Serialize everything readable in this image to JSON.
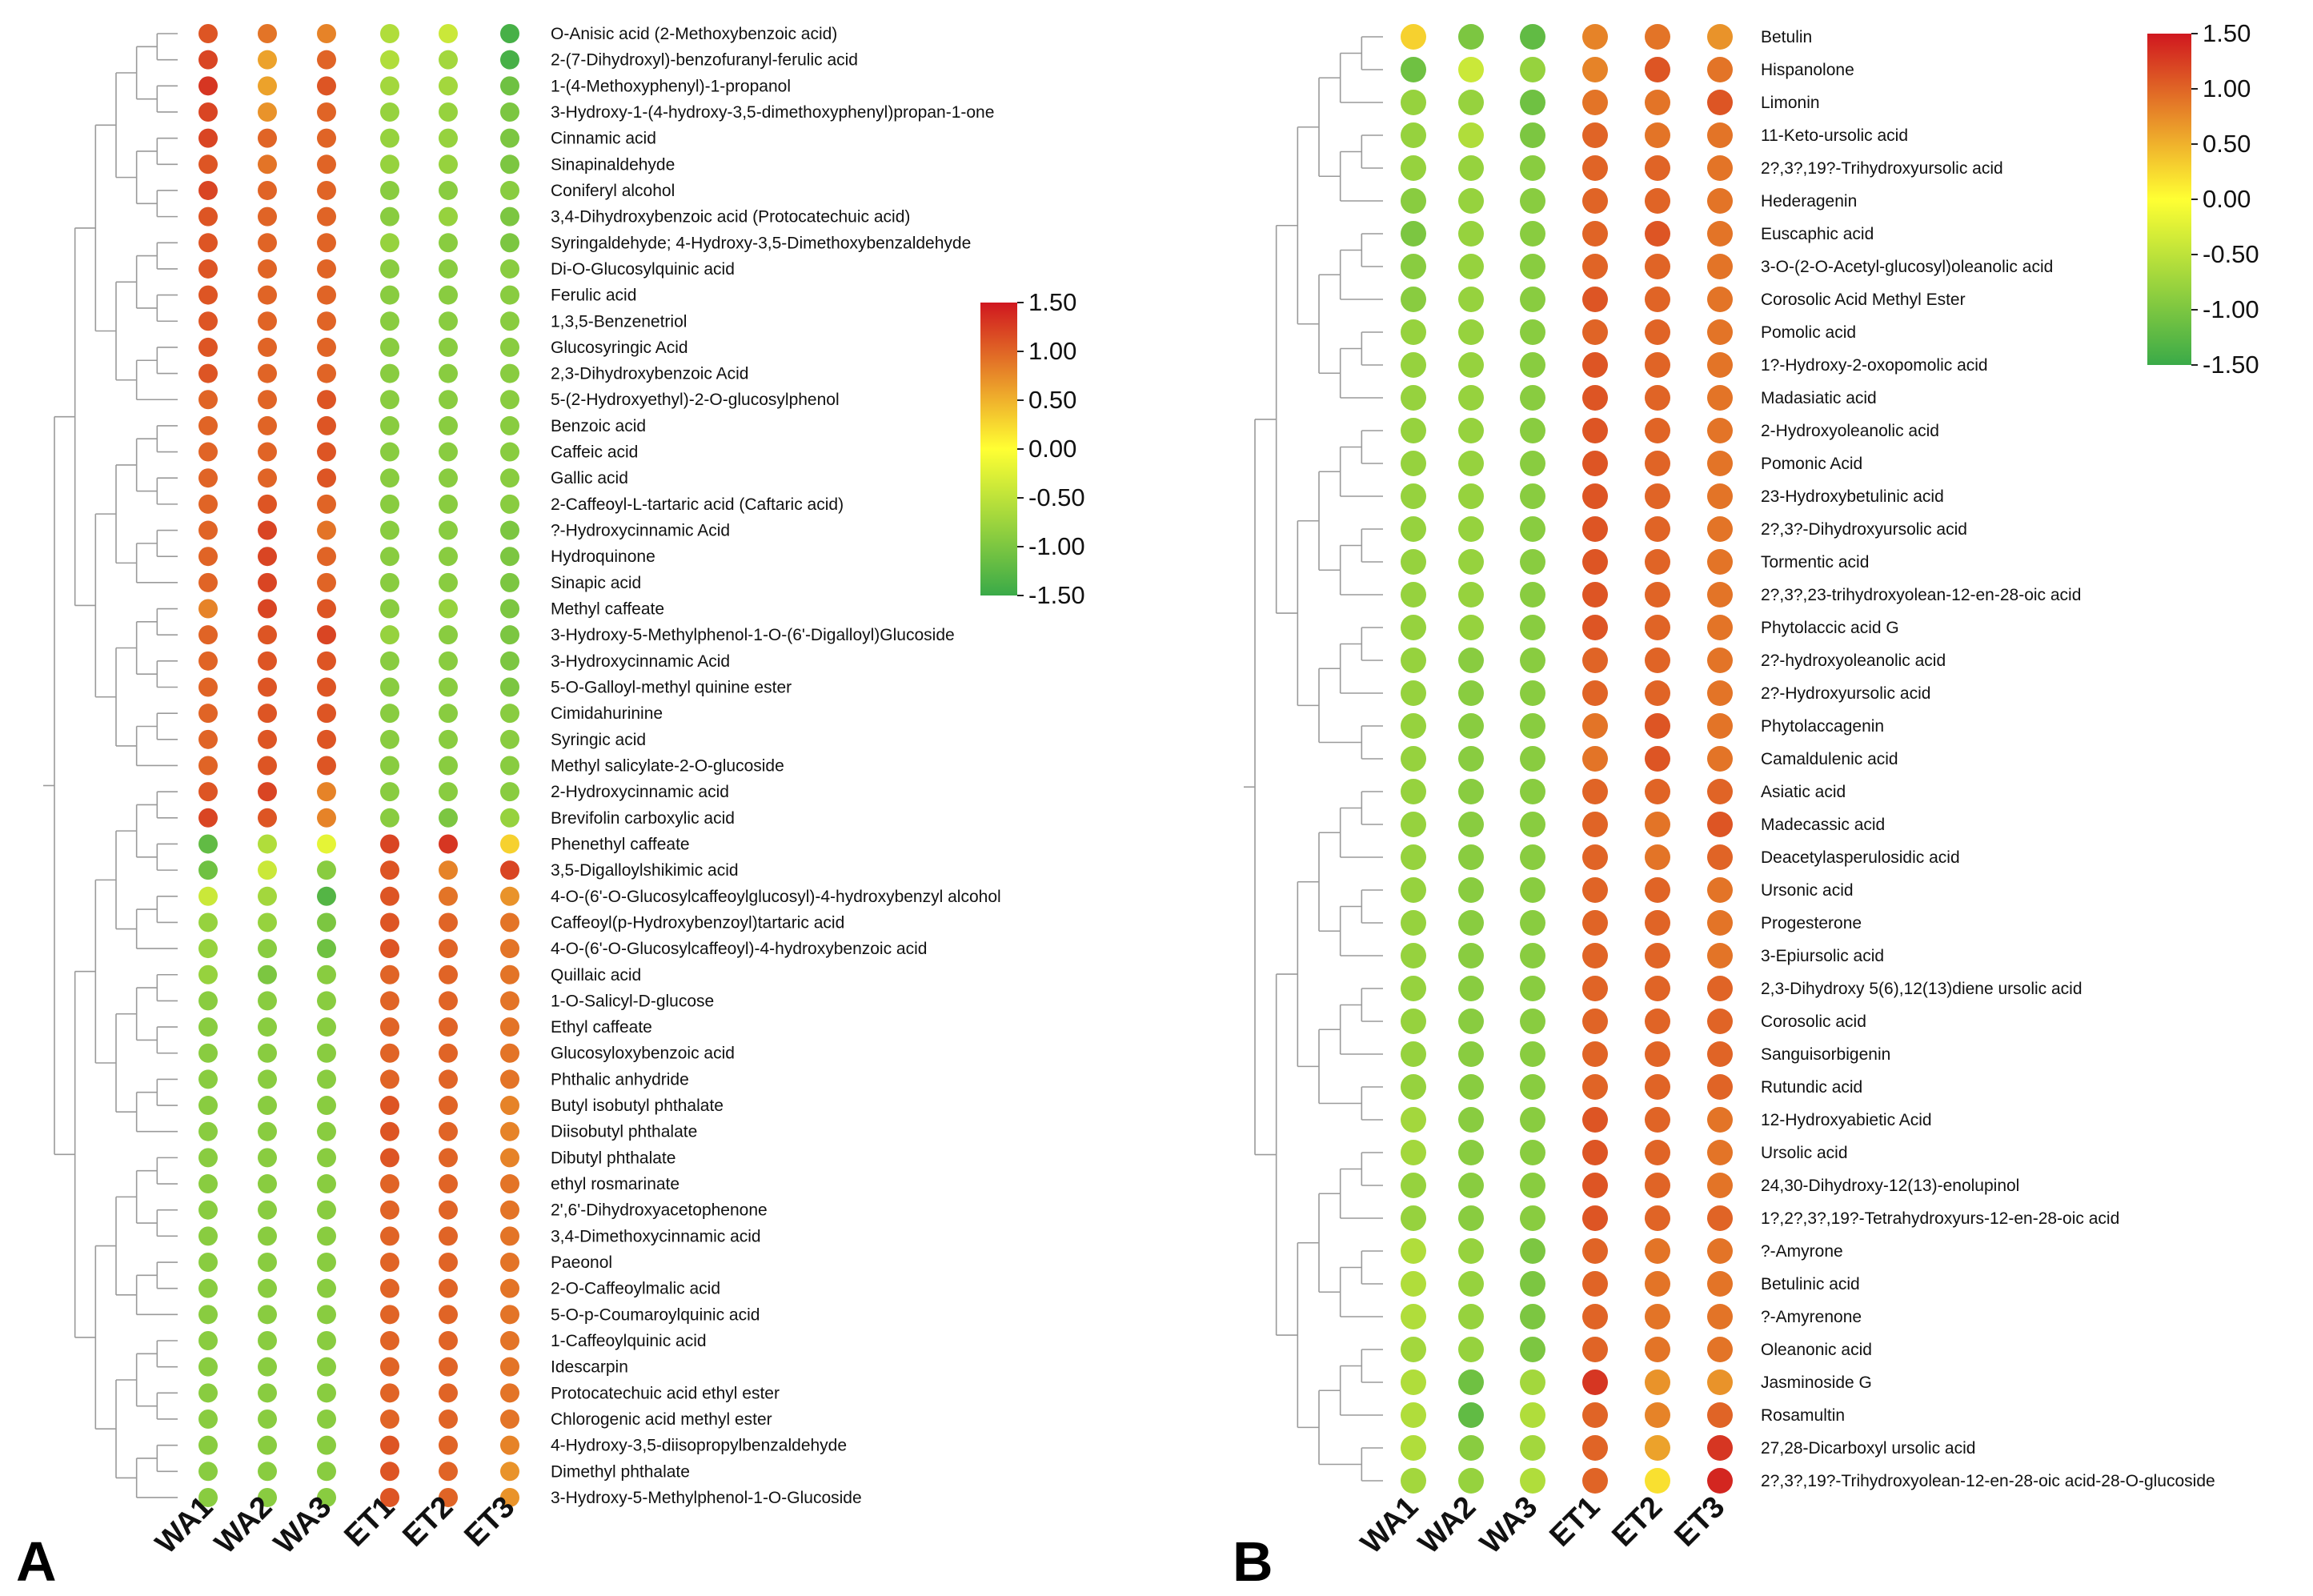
{
  "chart_data": [
    {
      "type": "heatmap",
      "panel_label": "A",
      "legend_position": "right",
      "columns": [
        "WA1",
        "WA2",
        "WA3",
        "ET1",
        "ET2",
        "ET3"
      ],
      "color_scale": {
        "min": -1.5,
        "max": 1.5,
        "colors": [
          "#3aaa48",
          "#ffff33",
          "#d0171f"
        ],
        "ticks": [
          "1.50",
          "1.00",
          "0.50",
          "0.00",
          "-0.50",
          "-1.00",
          "-1.50"
        ]
      },
      "rows": [
        "O-Anisic acid (2-Methoxybenzoic acid)",
        "2-(7-Dihydroxyl)-benzofuranyl-ferulic acid",
        "1-(4-Methoxyphenyl)-1-propanol",
        "3-Hydroxy-1-(4-hydroxy-3,5-dimethoxyphenyl)propan-1-one",
        "Cinnamic acid",
        "Sinapinaldehyde",
        "Coniferyl alcohol",
        "3,4-Dihydroxybenzoic acid (Protocatechuic acid)",
        "Syringaldehyde; 4-Hydroxy-3,5-Dimethoxybenzaldehyde",
        "Di-O-Glucosylquinic acid",
        "Ferulic acid",
        "1,3,5-Benzenetriol",
        "Glucosyringic Acid",
        "2,3-Dihydroxybenzoic Acid",
        "5-(2-Hydroxyethyl)-2-O-glucosylphenol",
        "Benzoic acid",
        "Caffeic acid",
        "Gallic acid",
        "2-Caffeoyl-L-tartaric acid (Caftaric acid)",
        "?-Hydroxycinnamic Acid",
        "Hydroquinone",
        "Sinapic acid",
        "Methyl caffeate",
        "3-Hydroxy-5-Methylphenol-1-O-(6'-Digalloyl)Glucoside",
        "3-Hydroxycinnamic Acid",
        "5-O-Galloyl-methyl quinine ester",
        "Cimidahurinine",
        "Syringic acid",
        "Methyl salicylate-2-O-glucoside",
        "2-Hydroxycinnamic acid",
        "Brevifolin carboxylic acid",
        "Phenethyl caffeate",
        "3,5-Digalloylshikimic acid",
        "4-O-(6'-O-Glucosylcaffeoylglucosyl)-4-hydroxybenzyl alcohol",
        "Caffeoyl(p-Hydroxybenzoyl)tartaric acid",
        "4-O-(6'-O-Glucosylcaffeoyl)-4-hydroxybenzoic acid",
        "Quillaic acid",
        "1-O-Salicyl-D-glucose",
        "Ethyl caffeate",
        "Glucosyloxybenzoic acid",
        "Phthalic anhydride",
        "Butyl isobutyl phthalate",
        "Diisobutyl phthalate",
        "Dibutyl phthalate",
        "ethyl rosmarinate",
        "2',6'-Dihydroxyacetophenone",
        "3,4-Dimethoxycinnamic acid",
        "Paeonol",
        "2-O-Caffeoylmalic acid",
        "5-O-p-Coumaroylquinic acid",
        "1-Caffeoylquinic acid",
        "Idescarpin",
        "Protocatechuic acid ethyl ester",
        "Chlorogenic acid methyl ester",
        "4-Hydroxy-3,5-diisopropylbenzaldehyde",
        "Dimethyl phthalate",
        "3-Hydroxy-5-Methylphenol-1-O-Glucoside"
      ],
      "values": [
        [
          1.1,
          0.9,
          0.8,
          -0.6,
          -0.4,
          -1.4
        ],
        [
          1.2,
          0.6,
          1.0,
          -0.6,
          -0.7,
          -1.4
        ],
        [
          1.3,
          0.6,
          1.1,
          -0.7,
          -0.7,
          -1.1
        ],
        [
          1.2,
          0.7,
          1.0,
          -0.8,
          -0.8,
          -1.0
        ],
        [
          1.2,
          1.0,
          1.0,
          -0.8,
          -0.8,
          -1.0
        ],
        [
          1.1,
          0.9,
          1.0,
          -0.8,
          -0.8,
          -1.0
        ],
        [
          1.2,
          1.0,
          1.0,
          -0.9,
          -0.9,
          -0.9
        ],
        [
          1.1,
          1.0,
          1.0,
          -0.9,
          -0.8,
          -1.0
        ],
        [
          1.1,
          1.0,
          1.0,
          -0.8,
          -0.9,
          -1.0
        ],
        [
          1.1,
          1.0,
          1.0,
          -0.9,
          -0.9,
          -0.9
        ],
        [
          1.1,
          1.0,
          1.0,
          -0.9,
          -0.9,
          -0.9
        ],
        [
          1.1,
          1.0,
          1.0,
          -0.9,
          -0.9,
          -0.9
        ],
        [
          1.1,
          1.0,
          1.0,
          -0.9,
          -0.9,
          -0.9
        ],
        [
          1.1,
          1.0,
          1.0,
          -0.9,
          -0.9,
          -0.9
        ],
        [
          1.0,
          1.0,
          1.1,
          -0.9,
          -0.9,
          -0.9
        ],
        [
          1.0,
          1.0,
          1.1,
          -0.9,
          -0.9,
          -0.9
        ],
        [
          1.0,
          1.0,
          1.1,
          -0.9,
          -0.9,
          -0.9
        ],
        [
          1.0,
          1.0,
          1.1,
          -0.9,
          -0.9,
          -0.9
        ],
        [
          1.0,
          1.1,
          1.0,
          -0.9,
          -0.9,
          -0.9
        ],
        [
          1.0,
          1.2,
          0.9,
          -0.9,
          -0.9,
          -1.0
        ],
        [
          1.0,
          1.2,
          1.0,
          -0.9,
          -0.9,
          -1.0
        ],
        [
          1.0,
          1.2,
          1.0,
          -0.9,
          -0.9,
          -1.0
        ],
        [
          0.8,
          1.2,
          1.1,
          -0.9,
          -0.8,
          -1.0
        ],
        [
          1.0,
          1.1,
          1.2,
          -0.8,
          -0.9,
          -1.0
        ],
        [
          1.0,
          1.1,
          1.1,
          -0.9,
          -0.9,
          -1.0
        ],
        [
          1.0,
          1.1,
          1.1,
          -0.9,
          -0.9,
          -1.0
        ],
        [
          1.0,
          1.1,
          1.1,
          -0.9,
          -0.9,
          -0.9
        ],
        [
          1.0,
          1.1,
          1.1,
          -0.9,
          -0.9,
          -0.9
        ],
        [
          1.0,
          1.1,
          1.1,
          -0.9,
          -0.9,
          -0.9
        ],
        [
          1.1,
          1.2,
          0.8,
          -0.9,
          -0.9,
          -0.9
        ],
        [
          1.2,
          1.1,
          0.8,
          -0.9,
          -1.0,
          -0.8
        ],
        [
          -1.2,
          -0.6,
          -0.2,
          1.2,
          1.3,
          0.3
        ],
        [
          -1.1,
          -0.4,
          -0.9,
          1.1,
          0.8,
          1.2
        ],
        [
          -0.4,
          -0.7,
          -1.3,
          1.1,
          0.9,
          0.7
        ],
        [
          -0.8,
          -0.8,
          -1.0,
          1.1,
          1.0,
          0.9
        ],
        [
          -0.8,
          -0.9,
          -1.1,
          1.1,
          1.0,
          0.9
        ],
        [
          -0.8,
          -1.0,
          -0.9,
          1.0,
          1.0,
          0.9
        ],
        [
          -0.9,
          -0.9,
          -0.9,
          1.0,
          1.0,
          0.9
        ],
        [
          -0.9,
          -0.9,
          -0.9,
          1.0,
          1.0,
          0.9
        ],
        [
          -0.9,
          -0.9,
          -0.9,
          1.0,
          1.0,
          0.9
        ],
        [
          -0.9,
          -0.9,
          -0.9,
          1.0,
          1.0,
          0.9
        ],
        [
          -0.9,
          -0.9,
          -0.9,
          1.1,
          1.0,
          0.8
        ],
        [
          -0.9,
          -0.9,
          -0.9,
          1.1,
          1.0,
          0.8
        ],
        [
          -0.9,
          -0.9,
          -0.9,
          1.1,
          1.0,
          0.8
        ],
        [
          -0.9,
          -0.9,
          -0.9,
          1.0,
          1.0,
          0.9
        ],
        [
          -0.9,
          -0.9,
          -0.9,
          1.0,
          1.0,
          0.9
        ],
        [
          -0.9,
          -0.9,
          -0.9,
          1.0,
          1.0,
          0.9
        ],
        [
          -0.9,
          -0.9,
          -0.9,
          1.0,
          1.0,
          0.9
        ],
        [
          -0.9,
          -0.9,
          -0.9,
          1.0,
          1.0,
          0.9
        ],
        [
          -0.9,
          -0.9,
          -0.9,
          1.0,
          1.0,
          0.9
        ],
        [
          -0.9,
          -0.9,
          -0.9,
          1.0,
          1.0,
          0.9
        ],
        [
          -0.9,
          -0.9,
          -0.9,
          1.0,
          1.0,
          0.9
        ],
        [
          -0.9,
          -0.9,
          -0.9,
          1.0,
          1.0,
          0.9
        ],
        [
          -0.9,
          -0.9,
          -0.9,
          1.0,
          1.0,
          0.9
        ],
        [
          -0.9,
          -0.9,
          -0.9,
          1.1,
          1.0,
          0.8
        ],
        [
          -0.9,
          -0.9,
          -0.9,
          1.1,
          1.0,
          0.7
        ],
        [
          -0.9,
          -0.9,
          -0.9,
          1.1,
          1.0,
          0.7
        ]
      ]
    },
    {
      "type": "heatmap",
      "panel_label": "B",
      "legend_position": "top-right",
      "columns": [
        "WA1",
        "WA2",
        "WA3",
        "ET1",
        "ET2",
        "ET3"
      ],
      "color_scale": {
        "min": -1.5,
        "max": 1.5,
        "colors": [
          "#3aaa48",
          "#ffff33",
          "#d0171f"
        ],
        "ticks": [
          "1.50",
          "1.00",
          "0.50",
          "0.00",
          "-0.50",
          "-1.00",
          "-1.50"
        ]
      },
      "rows": [
        "Betulin",
        "Hispanolone",
        "Limonin",
        "11-Keto-ursolic acid",
        "2?,3?,19?-Trihydroxyursolic acid",
        "Hederagenin",
        "Euscaphic acid",
        "3-O-(2-O-Acetyl-glucosyl)oleanolic acid",
        "Corosolic Acid Methyl Ester",
        "Pomolic acid",
        "1?-Hydroxy-2-oxopomolic acid",
        "Madasiatic acid",
        "2-Hydroxyoleanolic acid",
        "Pomonic Acid",
        "23-Hydroxybetulinic acid",
        "2?,3?-Dihydroxyursolic acid",
        "Tormentic acid",
        "2?,3?,23-trihydroxyolean-12-en-28-oic acid",
        "Phytolaccic acid G",
        "2?-hydroxyoleanolic acid",
        "2?-Hydroxyursolic acid",
        "Phytolaccagenin",
        "Camaldulenic acid",
        "Asiatic acid",
        "Madecassic acid",
        "Deacetylasperulosidic acid",
        "Ursonic acid",
        "Progesterone",
        "3-Epiursolic acid",
        "2,3-Dihydroxy 5(6),12(13)diene ursolic acid",
        "Corosolic acid",
        "Sanguisorbigenin",
        "Rutundic acid",
        "12-Hydroxyabietic Acid",
        "Ursolic acid",
        "24,30-Dihydroxy-12(13)-enolupinol",
        "1?,2?,3?,19?-Tetrahydroxyurs-12-en-28-oic acid",
        "?-Amyrone",
        "Betulinic acid",
        "?-Amyrenone",
        "Oleanonic acid",
        "Jasminoside G",
        "Rosamultin",
        "27,28-Dicarboxyl ursolic acid",
        "2?,3?,19?-Trihydroxyolean-12-en-28-oic acid-28-O-glucoside"
      ],
      "values": [
        [
          0.3,
          -1.0,
          -1.2,
          0.8,
          0.9,
          0.7
        ],
        [
          -1.1,
          -0.4,
          -0.8,
          0.8,
          1.1,
          0.9
        ],
        [
          -0.8,
          -0.8,
          -1.1,
          0.9,
          0.9,
          1.1
        ],
        [
          -0.8,
          -0.6,
          -1.0,
          1.0,
          0.9,
          0.9
        ],
        [
          -0.8,
          -0.8,
          -0.9,
          1.0,
          1.0,
          0.9
        ],
        [
          -0.9,
          -0.8,
          -0.9,
          1.0,
          1.0,
          0.9
        ],
        [
          -1.0,
          -0.8,
          -0.9,
          1.0,
          1.1,
          0.9
        ],
        [
          -0.9,
          -0.8,
          -0.9,
          1.0,
          1.0,
          0.9
        ],
        [
          -0.9,
          -0.8,
          -0.9,
          1.1,
          1.0,
          0.9
        ],
        [
          -0.8,
          -0.8,
          -0.9,
          1.0,
          1.0,
          0.9
        ],
        [
          -0.8,
          -0.8,
          -0.9,
          1.1,
          1.0,
          0.9
        ],
        [
          -0.8,
          -0.8,
          -0.9,
          1.1,
          1.0,
          0.9
        ],
        [
          -0.8,
          -0.8,
          -0.9,
          1.1,
          1.0,
          0.9
        ],
        [
          -0.8,
          -0.8,
          -0.9,
          1.1,
          1.0,
          0.9
        ],
        [
          -0.8,
          -0.8,
          -0.9,
          1.1,
          1.0,
          0.9
        ],
        [
          -0.8,
          -0.8,
          -0.9,
          1.1,
          1.0,
          0.9
        ],
        [
          -0.8,
          -0.8,
          -0.9,
          1.1,
          1.0,
          0.9
        ],
        [
          -0.8,
          -0.8,
          -0.9,
          1.1,
          1.0,
          0.9
        ],
        [
          -0.8,
          -0.8,
          -0.9,
          1.1,
          1.0,
          0.9
        ],
        [
          -0.8,
          -0.9,
          -0.9,
          1.0,
          1.0,
          0.9
        ],
        [
          -0.8,
          -0.9,
          -0.9,
          1.0,
          1.0,
          0.9
        ],
        [
          -0.8,
          -0.9,
          -0.9,
          0.9,
          1.1,
          0.9
        ],
        [
          -0.8,
          -0.9,
          -0.9,
          0.9,
          1.1,
          0.9
        ],
        [
          -0.8,
          -0.9,
          -0.9,
          1.0,
          1.0,
          1.0
        ],
        [
          -0.8,
          -0.9,
          -0.9,
          1.0,
          0.9,
          1.1
        ],
        [
          -0.8,
          -0.9,
          -0.9,
          1.0,
          0.9,
          1.0
        ],
        [
          -0.8,
          -0.9,
          -0.9,
          1.0,
          1.0,
          0.9
        ],
        [
          -0.8,
          -0.9,
          -0.9,
          1.0,
          1.0,
          0.9
        ],
        [
          -0.8,
          -0.9,
          -0.9,
          1.0,
          1.0,
          0.9
        ],
        [
          -0.8,
          -0.9,
          -0.9,
          1.0,
          1.0,
          1.0
        ],
        [
          -0.8,
          -0.9,
          -0.9,
          1.0,
          1.0,
          1.0
        ],
        [
          -0.8,
          -0.9,
          -0.9,
          1.0,
          1.0,
          1.0
        ],
        [
          -0.8,
          -0.9,
          -0.9,
          1.0,
          1.0,
          1.0
        ],
        [
          -0.7,
          -0.9,
          -0.9,
          1.1,
          1.0,
          0.9
        ],
        [
          -0.7,
          -0.9,
          -0.9,
          1.1,
          1.0,
          0.9
        ],
        [
          -0.8,
          -0.9,
          -0.9,
          1.1,
          1.0,
          0.9
        ],
        [
          -0.8,
          -0.9,
          -0.9,
          1.1,
          1.0,
          1.0
        ],
        [
          -0.6,
          -0.8,
          -1.0,
          1.0,
          0.9,
          0.9
        ],
        [
          -0.6,
          -0.8,
          -1.0,
          1.0,
          0.9,
          0.9
        ],
        [
          -0.6,
          -0.8,
          -1.0,
          1.0,
          0.9,
          0.9
        ],
        [
          -0.7,
          -0.8,
          -1.0,
          1.0,
          0.9,
          0.9
        ],
        [
          -0.6,
          -1.1,
          -0.7,
          1.3,
          0.7,
          0.7
        ],
        [
          -0.6,
          -1.2,
          -0.6,
          1.0,
          0.8,
          1.0
        ],
        [
          -0.6,
          -0.9,
          -0.7,
          1.0,
          0.6,
          1.3
        ],
        [
          -0.7,
          -0.8,
          -0.6,
          1.0,
          0.2,
          1.4
        ]
      ]
    }
  ]
}
